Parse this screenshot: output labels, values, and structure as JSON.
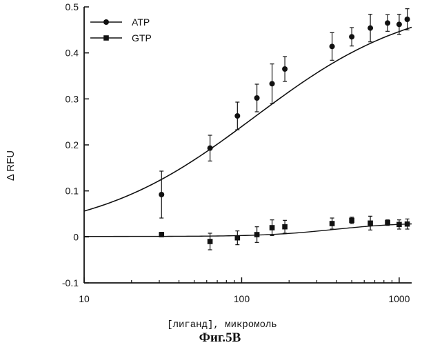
{
  "figure_caption": "Фиг.5B",
  "chart_data": {
    "type": "scatter",
    "xscale": "log",
    "xlabel": "[лиганд], микромоль",
    "ylabel": "Δ RFU",
    "xlim": [
      10,
      1200
    ],
    "ylim": [
      -0.1,
      0.5
    ],
    "x_ticks": [
      10,
      100,
      1000
    ],
    "x_tick_labels": [
      "10",
      "100",
      "1000"
    ],
    "y_ticks": [
      -0.1,
      0,
      0.1,
      0.2,
      0.3,
      0.4,
      0.5
    ],
    "y_tick_labels": [
      "-0.1",
      "0",
      "0.1",
      "0.2",
      "0.3",
      "0.4",
      "0.5"
    ],
    "legend_position": "top-left",
    "series": [
      {
        "name": "ATP",
        "marker": "circle",
        "color": "#111111",
        "x": [
          31,
          63,
          94,
          125,
          156,
          188,
          375,
          500,
          656,
          844,
          1000,
          1125
        ],
        "y": [
          0.092,
          0.193,
          0.263,
          0.302,
          0.333,
          0.365,
          0.414,
          0.435,
          0.454,
          0.465,
          0.462,
          0.473
        ],
        "err": [
          0.051,
          0.028,
          0.03,
          0.03,
          0.043,
          0.027,
          0.03,
          0.02,
          0.03,
          0.018,
          0.022,
          0.023
        ],
        "fit": {
          "bottom": 0.0,
          "top": 0.52,
          "ec50": 120,
          "hill": 0.85
        }
      },
      {
        "name": "GTP",
        "marker": "square",
        "color": "#111111",
        "x": [
          31,
          63,
          94,
          125,
          156,
          188,
          375,
          500,
          656,
          844,
          1000,
          1125
        ],
        "y": [
          0.005,
          -0.01,
          -0.002,
          0.005,
          0.02,
          0.022,
          0.029,
          0.036,
          0.03,
          0.031,
          0.027,
          0.028
        ],
        "err": [
          0.005,
          0.018,
          0.015,
          0.017,
          0.017,
          0.014,
          0.012,
          0.007,
          0.015,
          0.006,
          0.01,
          0.011
        ],
        "fit": {
          "start": 0.001,
          "end": 0.031,
          "x0": 380,
          "hill": 2.0
        }
      }
    ]
  }
}
